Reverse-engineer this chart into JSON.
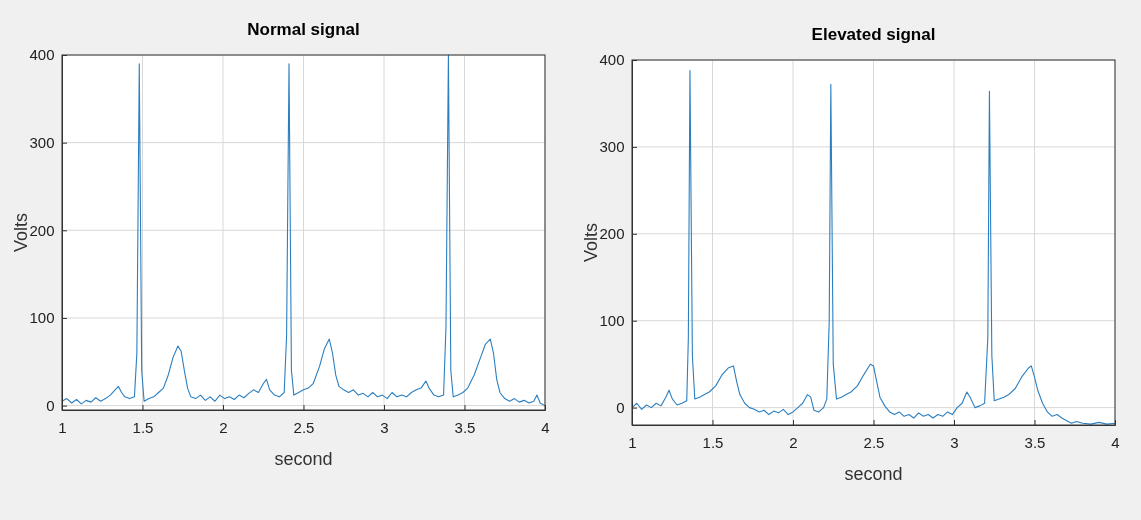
{
  "chart_data": [
    {
      "type": "line",
      "title": "Normal signal",
      "xlabel": "second",
      "ylabel": "Volts",
      "xlim": [
        1,
        4
      ],
      "ylim": [
        -5,
        400
      ],
      "xticks": [
        1,
        1.5,
        2,
        2.5,
        3,
        3.5,
        4
      ],
      "yticks": [
        0,
        100,
        200,
        300,
        400
      ],
      "grid": true,
      "series": [
        {
          "color": "#2b7fc0",
          "x": [
            1.0,
            1.03,
            1.06,
            1.09,
            1.12,
            1.15,
            1.18,
            1.21,
            1.24,
            1.27,
            1.3,
            1.33,
            1.35,
            1.37,
            1.39,
            1.42,
            1.45,
            1.465,
            1.48,
            1.495,
            1.51,
            1.54,
            1.57,
            1.6,
            1.63,
            1.66,
            1.69,
            1.72,
            1.74,
            1.76,
            1.78,
            1.8,
            1.83,
            1.86,
            1.89,
            1.92,
            1.95,
            1.98,
            2.01,
            2.04,
            2.07,
            2.1,
            2.13,
            2.16,
            2.19,
            2.22,
            2.25,
            2.27,
            2.29,
            2.32,
            2.35,
            2.38,
            2.395,
            2.41,
            2.425,
            2.44,
            2.47,
            2.5,
            2.53,
            2.56,
            2.6,
            2.63,
            2.66,
            2.68,
            2.7,
            2.72,
            2.75,
            2.78,
            2.81,
            2.84,
            2.87,
            2.9,
            2.93,
            2.96,
            2.99,
            3.02,
            3.05,
            3.08,
            3.11,
            3.14,
            3.17,
            3.2,
            3.23,
            3.26,
            3.28,
            3.31,
            3.34,
            3.37,
            3.385,
            3.4,
            3.415,
            3.43,
            3.46,
            3.49,
            3.52,
            3.56,
            3.6,
            3.63,
            3.66,
            3.68,
            3.7,
            3.72,
            3.75,
            3.78,
            3.81,
            3.84,
            3.87,
            3.9,
            3.93,
            3.95,
            3.97,
            4.0
          ],
          "values": [
            5,
            8,
            3,
            7,
            2,
            6,
            4,
            9,
            5,
            8,
            12,
            18,
            22,
            15,
            10,
            8,
            10,
            60,
            390,
            40,
            5,
            8,
            10,
            15,
            20,
            35,
            55,
            68,
            62,
            40,
            20,
            10,
            8,
            12,
            6,
            10,
            5,
            12,
            8,
            10,
            7,
            12,
            9,
            14,
            18,
            15,
            25,
            30,
            18,
            12,
            10,
            15,
            80,
            390,
            40,
            12,
            15,
            18,
            20,
            25,
            45,
            65,
            76,
            60,
            35,
            22,
            18,
            15,
            18,
            12,
            14,
            10,
            15,
            10,
            12,
            8,
            15,
            10,
            12,
            10,
            15,
            18,
            20,
            28,
            20,
            12,
            10,
            12,
            90,
            400,
            40,
            10,
            12,
            15,
            20,
            35,
            55,
            70,
            76,
            60,
            30,
            15,
            8,
            5,
            8,
            4,
            6,
            3,
            5,
            12,
            3,
            0
          ]
        }
      ]
    },
    {
      "type": "line",
      "title": "Elevated signal",
      "xlabel": "second",
      "ylabel": "Volts",
      "xlim": [
        1,
        4
      ],
      "ylim": [
        -20,
        400
      ],
      "xticks": [
        1,
        1.5,
        2,
        2.5,
        3,
        3.5,
        4
      ],
      "yticks": [
        0,
        100,
        200,
        300,
        400
      ],
      "grid": true,
      "series": [
        {
          "color": "#2b7fc0",
          "x": [
            1.0,
            1.03,
            1.06,
            1.09,
            1.12,
            1.15,
            1.18,
            1.21,
            1.23,
            1.25,
            1.28,
            1.31,
            1.34,
            1.35,
            1.36,
            1.375,
            1.39,
            1.42,
            1.45,
            1.48,
            1.52,
            1.56,
            1.6,
            1.63,
            1.65,
            1.67,
            1.7,
            1.73,
            1.76,
            1.79,
            1.82,
            1.85,
            1.88,
            1.91,
            1.94,
            1.97,
            2.0,
            2.03,
            2.06,
            2.09,
            2.11,
            2.13,
            2.16,
            2.19,
            2.21,
            2.225,
            2.235,
            2.25,
            2.27,
            2.3,
            2.33,
            2.36,
            2.4,
            2.44,
            2.48,
            2.5,
            2.52,
            2.54,
            2.57,
            2.6,
            2.63,
            2.66,
            2.69,
            2.72,
            2.75,
            2.78,
            2.81,
            2.84,
            2.87,
            2.9,
            2.93,
            2.96,
            2.99,
            3.02,
            3.05,
            3.08,
            3.1,
            3.13,
            3.16,
            3.19,
            3.21,
            3.22,
            3.235,
            3.25,
            3.28,
            3.31,
            3.34,
            3.38,
            3.42,
            3.46,
            3.48,
            3.5,
            3.52,
            3.55,
            3.58,
            3.61,
            3.64,
            3.67,
            3.7,
            3.73,
            3.76,
            3.8,
            3.85,
            3.9,
            3.95,
            4.0
          ],
          "values": [
            0,
            5,
            -2,
            3,
            0,
            5,
            2,
            12,
            20,
            10,
            3,
            5,
            8,
            80,
            388,
            60,
            10,
            12,
            15,
            18,
            25,
            38,
            46,
            48,
            30,
            15,
            5,
            0,
            -2,
            -5,
            -3,
            -8,
            -4,
            -6,
            -2,
            -8,
            -5,
            0,
            5,
            15,
            12,
            -3,
            -5,
            0,
            10,
            100,
            372,
            50,
            10,
            12,
            15,
            18,
            25,
            38,
            50,
            48,
            30,
            12,
            2,
            -5,
            -8,
            -5,
            -10,
            -8,
            -12,
            -6,
            -10,
            -8,
            -12,
            -8,
            -10,
            -5,
            -8,
            0,
            5,
            18,
            12,
            0,
            2,
            5,
            80,
            364,
            60,
            8,
            10,
            12,
            15,
            22,
            35,
            45,
            48,
            35,
            20,
            5,
            -5,
            -10,
            -8,
            -12,
            -15,
            -18,
            -16,
            -18,
            -19,
            -17,
            -19,
            -18
          ]
        }
      ]
    }
  ]
}
